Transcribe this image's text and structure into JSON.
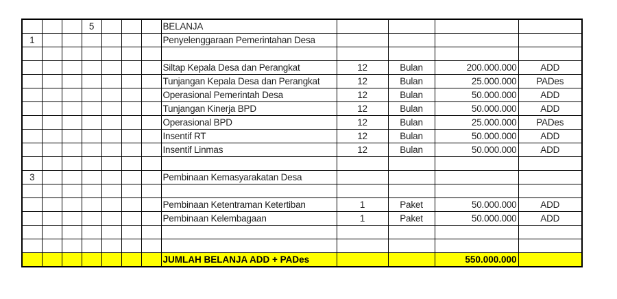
{
  "table": {
    "highlight_color": "#ffff00",
    "border_color": "#000000",
    "text_color": "#1e1e1e",
    "rows": [
      {
        "cells": [
          "",
          "",
          "",
          "5",
          "",
          "",
          "",
          "BELANJA",
          "",
          "",
          "",
          ""
        ]
      },
      {
        "cells": [
          "1",
          "",
          "",
          "",
          "",
          "",
          "",
          "Penyelenggaraan Pemerintahan Desa",
          "",
          "",
          "",
          ""
        ]
      },
      {
        "cells": [
          "",
          "",
          "",
          "",
          "",
          "",
          "",
          "",
          "",
          "",
          "",
          ""
        ]
      },
      {
        "cells": [
          "",
          "",
          "",
          "",
          "",
          "",
          "",
          "Siltap Kepala Desa dan Perangkat",
          "12",
          "Bulan",
          "200.000.000",
          "ADD"
        ]
      },
      {
        "cells": [
          "",
          "",
          "",
          "",
          "",
          "",
          "",
          "Tunjangan Kepala Desa dan Perangkat",
          "12",
          "Bulan",
          "25.000.000",
          "PADes"
        ]
      },
      {
        "cells": [
          "",
          "",
          "",
          "",
          "",
          "",
          "",
          "Operasional Pemerintah Desa",
          "12",
          "Bulan",
          "50.000.000",
          "ADD"
        ]
      },
      {
        "cells": [
          "",
          "",
          "",
          "",
          "",
          "",
          "",
          "Tunjangan Kinerja BPD",
          "12",
          "Bulan",
          "50.000.000",
          "ADD"
        ]
      },
      {
        "cells": [
          "",
          "",
          "",
          "",
          "",
          "",
          "",
          "Operasional BPD",
          "12",
          "Bulan",
          "25.000.000",
          "PADes"
        ]
      },
      {
        "cells": [
          "",
          "",
          "",
          "",
          "",
          "",
          "",
          "Insentif RT",
          "12",
          "Bulan",
          "50.000.000",
          "ADD"
        ]
      },
      {
        "cells": [
          "",
          "",
          "",
          "",
          "",
          "",
          "",
          "Insentif Linmas",
          "12",
          "Bulan",
          "50.000.000",
          "ADD"
        ]
      },
      {
        "cells": [
          "",
          "",
          "",
          "",
          "",
          "",
          "",
          "",
          "",
          "",
          "",
          ""
        ]
      },
      {
        "cells": [
          "3",
          "",
          "",
          "",
          "",
          "",
          "",
          "Pembinaan Kemasyarakatan Desa",
          "",
          "",
          "",
          ""
        ]
      },
      {
        "cells": [
          "",
          "",
          "",
          "",
          "",
          "",
          "",
          "",
          "",
          "",
          "",
          ""
        ]
      },
      {
        "cells": [
          "",
          "",
          "",
          "",
          "",
          "",
          "",
          "Pembinaan Ketentraman Ketertiban",
          "1",
          "Paket",
          "50.000.000",
          "ADD"
        ]
      },
      {
        "cells": [
          "",
          "",
          "",
          "",
          "",
          "",
          "",
          "Pembinaan Kelembagaan",
          "1",
          "Paket",
          "50.000.000",
          "ADD"
        ]
      },
      {
        "cells": [
          "",
          "",
          "",
          "",
          "",
          "",
          "",
          "",
          "",
          "",
          "",
          ""
        ]
      },
      {
        "cells": [
          "",
          "",
          "",
          "",
          "",
          "",
          "",
          "",
          "",
          "",
          "",
          ""
        ]
      },
      {
        "cells": [
          "",
          "",
          "",
          "",
          "",
          "",
          "",
          "JUMLAH BELANJA ADD + PADes",
          "",
          "",
          "550.000.000",
          ""
        ],
        "highlight": true
      }
    ]
  }
}
